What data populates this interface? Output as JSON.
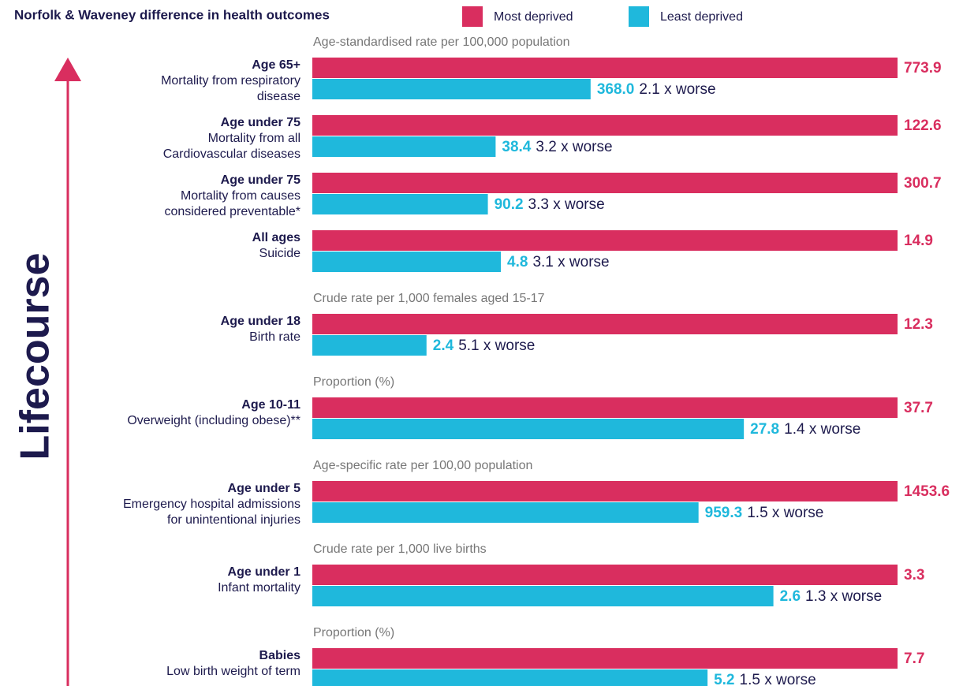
{
  "chart_data": {
    "type": "bar",
    "title": "Norfolk & Waveney difference in health outcomes",
    "axis_label": "Lifecourse",
    "series": [
      {
        "name": "Most deprived",
        "color": "#d92e5f"
      },
      {
        "name": "Least deprived",
        "color": "#1fb8dc"
      }
    ],
    "sections": [
      {
        "unit": "Age-standardised rate per 100,000 population",
        "items": [
          {
            "group": "Age 65+",
            "label": [
              "Mortality from respiratory",
              "disease"
            ],
            "values": [
              773.9,
              368.0
            ],
            "value_labels": [
              "773.9",
              "368.0"
            ],
            "ratio": "2.1 x worse"
          },
          {
            "group": "Age under 75",
            "label": [
              "Mortality from all",
              "Cardiovascular diseases"
            ],
            "values": [
              122.6,
              38.4
            ],
            "ratio": "3.2 x worse"
          },
          {
            "group": "Age under 75",
            "label": [
              "Mortality from causes",
              "considered preventable*"
            ],
            "values": [
              300.7,
              90.2
            ],
            "ratio": "3.3 x worse"
          },
          {
            "group": "All ages",
            "label": [
              "Suicide"
            ],
            "values": [
              14.9,
              4.8
            ],
            "ratio": "3.1 x worse"
          }
        ]
      },
      {
        "unit": "Crude rate per 1,000 females aged 15-17",
        "items": [
          {
            "group": "Age under 18",
            "label": [
              "Birth rate"
            ],
            "values": [
              12.3,
              2.4
            ],
            "ratio": "5.1 x worse"
          }
        ]
      },
      {
        "unit": "Proportion (%)",
        "items": [
          {
            "group": "Age 10-11",
            "label": [
              "Overweight (including obese)**"
            ],
            "values": [
              37.7,
              27.8
            ],
            "ratio": "1.4 x worse"
          }
        ]
      },
      {
        "unit": "Age-specific rate per 100,00 population",
        "items": [
          {
            "group": "Age under 5",
            "label": [
              "Emergency hospital admissions",
              "for unintentional injuries"
            ],
            "values": [
              1453.6,
              959.3
            ],
            "ratio": "1.5 x worse"
          }
        ]
      },
      {
        "unit": "Crude rate per 1,000 live births",
        "items": [
          {
            "group": "Age under 1",
            "label": [
              "Infant mortality"
            ],
            "values": [
              3.3,
              2.6
            ],
            "ratio": "1.3 x worse"
          }
        ]
      },
      {
        "unit": "Proportion (%)",
        "items": [
          {
            "group": "Babies",
            "label": [
              "Low birth weight of term"
            ],
            "values": [
              7.7,
              5.2
            ],
            "ratio": "1.5 x worse"
          }
        ]
      }
    ]
  }
}
